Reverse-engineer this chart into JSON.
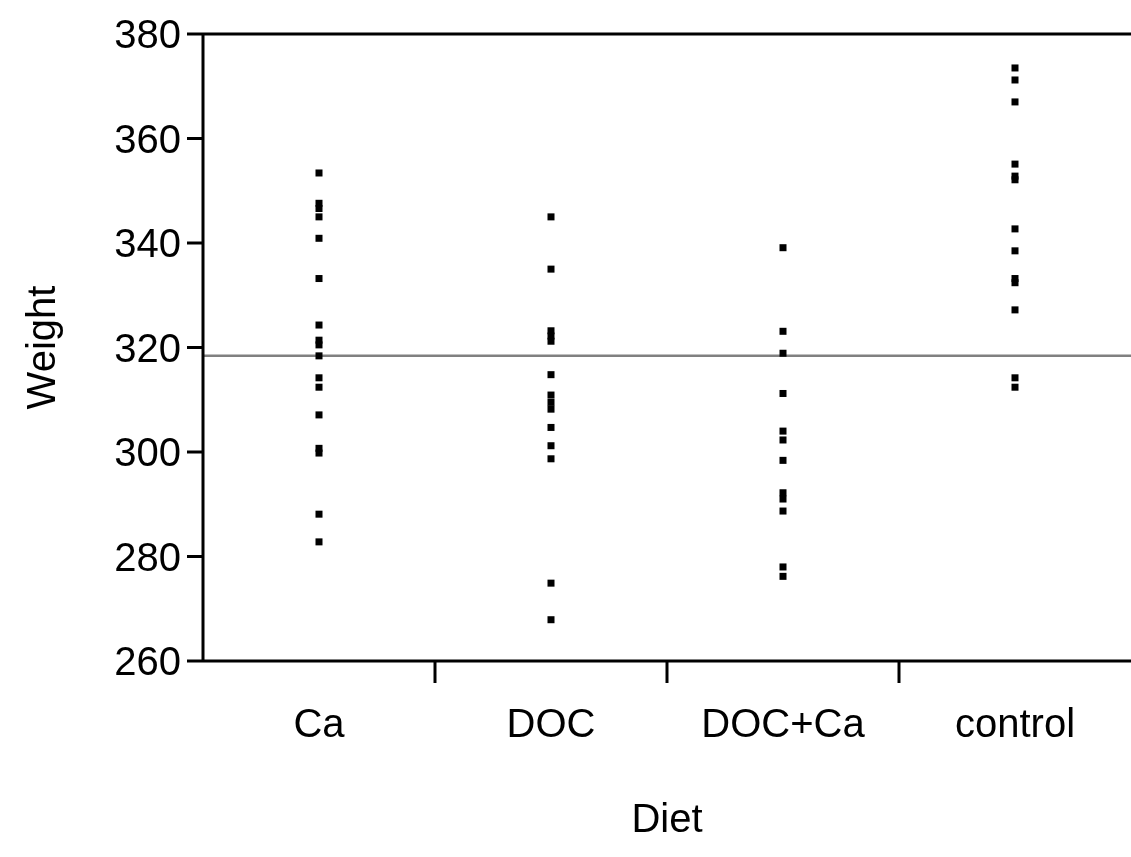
{
  "chart_data": {
    "type": "scatter",
    "xlabel": "Diet",
    "ylabel": "Weight",
    "categories": [
      "Ca",
      "DOC",
      "DOC+Ca",
      "control"
    ],
    "ylim": [
      260,
      380
    ],
    "yticks": [
      260,
      280,
      300,
      320,
      340,
      360,
      380
    ],
    "marker": "square",
    "ref_lines": [
      {
        "axis": "y",
        "value": 318.4,
        "color": "#808080"
      }
    ],
    "series": [
      {
        "color": "#000000",
        "x": [
          "Ca",
          "Ca",
          "Ca",
          "Ca",
          "Ca",
          "Ca",
          "Ca",
          "Ca",
          "Ca",
          "Ca",
          "Ca",
          "Ca",
          "Ca",
          "Ca",
          "Ca",
          "Ca",
          "Ca",
          "DOC",
          "DOC",
          "DOC",
          "DOC",
          "DOC",
          "DOC",
          "DOC",
          "DOC",
          "DOC",
          "DOC",
          "DOC",
          "DOC",
          "DOC",
          "DOC",
          "DOC+Ca",
          "DOC+Ca",
          "DOC+Ca",
          "DOC+Ca",
          "DOC+Ca",
          "DOC+Ca",
          "DOC+Ca",
          "DOC+Ca",
          "DOC+Ca",
          "DOC+Ca",
          "DOC+Ca",
          "DOC+Ca",
          "control",
          "control",
          "control",
          "control",
          "control",
          "control",
          "control",
          "control",
          "control",
          "control",
          "control",
          "control",
          "control"
        ],
        "values": [
          353.4,
          347.6,
          346.6,
          345.0,
          340.9,
          333.2,
          324.3,
          321.4,
          320.5,
          318.4,
          314.2,
          312.4,
          307.1,
          300.7,
          299.8,
          288.1,
          282.8,
          345.0,
          335.0,
          323.2,
          322.2,
          321.2,
          314.8,
          310.9,
          309.5,
          308.2,
          304.7,
          301.2,
          298.7,
          274.9,
          267.9,
          339.1,
          323.1,
          318.9,
          311.2,
          304.0,
          302.3,
          298.4,
          292.2,
          291.0,
          288.7,
          278.0,
          276.2,
          373.5,
          371.2,
          367.0,
          355.1,
          352.8,
          352.1,
          342.7,
          338.5,
          333.2,
          332.4,
          327.2,
          314.2,
          312.4
        ]
      }
    ]
  }
}
